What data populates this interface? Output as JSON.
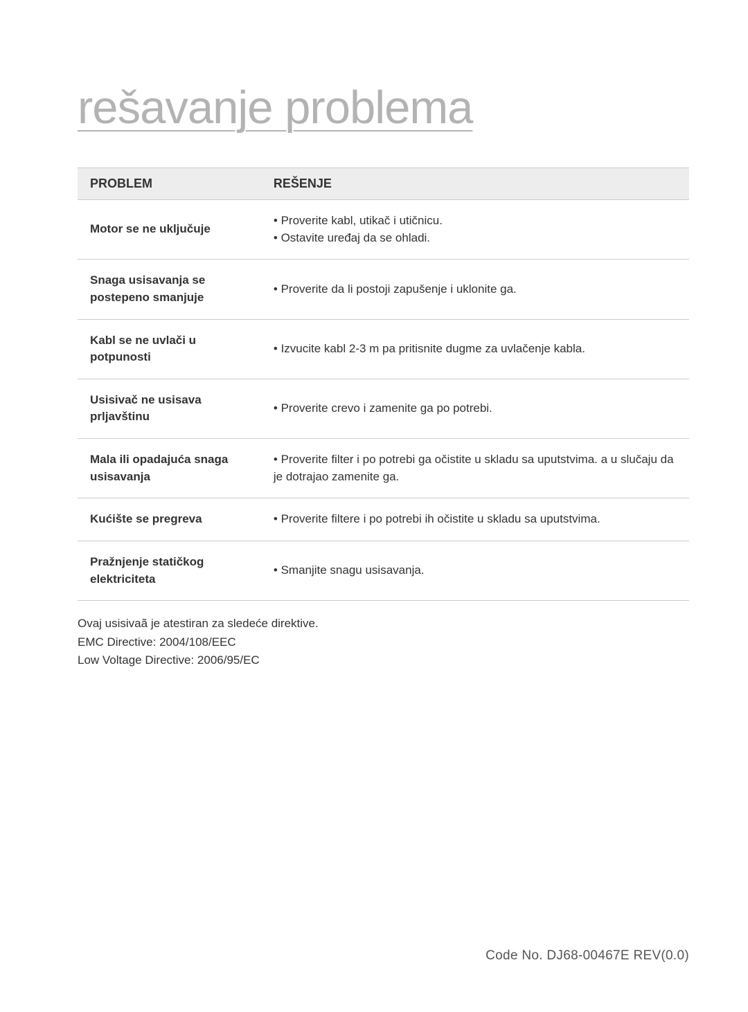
{
  "title": "rešavanje problema",
  "table": {
    "header": {
      "problem": "PROBLEM",
      "solution": "REŠENJE"
    },
    "rows": [
      {
        "problem": "Motor se ne uključuje",
        "solution": "• Proverite kabl, utikač i utičnicu.\n• Ostavite uređaj da se ohladi."
      },
      {
        "problem": "Snaga usisavanja se postepeno smanjuje",
        "solution": "• Proverite da li postoji zapušenje i uklonite ga."
      },
      {
        "problem": "Kabl se ne uvlači u potpunosti",
        "solution": "• Izvucite kabl 2-3 m pa pritisnite dugme za uvlačenje kabla."
      },
      {
        "problem": "Usisivač ne usisava prljavštinu",
        "solution": "• Proverite crevo i zamenite ga po potrebi."
      },
      {
        "problem": "Mala ili opadajuća snaga usisavanja",
        "solution": "• Proverite filter i po potrebi ga očistite u skladu sa uputstvima. a u slučaju da je dotrajao zamenite ga."
      },
      {
        "problem": "Kućište se pregreva",
        "solution": "• Proverite filtere i po potrebi ih očistite u skladu sa uputstvima."
      },
      {
        "problem": "Pražnjenje statičkog elektriciteta",
        "solution": "• Smanjite snagu usisavanja."
      }
    ]
  },
  "footer": {
    "line1": "Ovaj usisivaã je atestiran za sledeće direktive.",
    "line2": "EMC Directive: 2004/108/EEC",
    "line3": "Low Voltage Directive: 2006/95/EC"
  },
  "code": "Code No.  DJ68-00467E  REV(0.0)",
  "colors": {
    "title_color": "#b3b3b3",
    "header_bg": "#ededed",
    "border": "#cccccc",
    "text": "#333333",
    "code_text": "#555555",
    "page_bg": "#ffffff"
  },
  "typography": {
    "title_fontsize": 67,
    "header_fontsize": 18,
    "body_fontsize": 17,
    "code_fontsize": 19
  }
}
